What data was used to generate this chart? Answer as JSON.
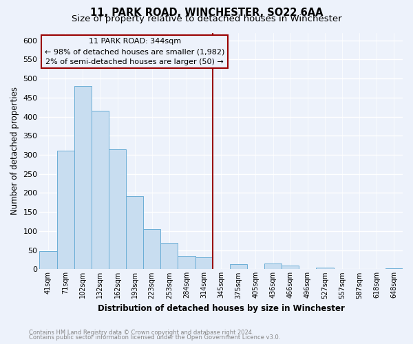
{
  "title": "11, PARK ROAD, WINCHESTER, SO22 6AA",
  "subtitle": "Size of property relative to detached houses in Winchester",
  "xlabel": "Distribution of detached houses by size in Winchester",
  "ylabel": "Number of detached properties",
  "footnote1": "Contains HM Land Registry data © Crown copyright and database right 2024.",
  "footnote2": "Contains public sector information licensed under the Open Government Licence v3.0.",
  "bar_labels": [
    "41sqm",
    "71sqm",
    "102sqm",
    "132sqm",
    "162sqm",
    "193sqm",
    "223sqm",
    "253sqm",
    "284sqm",
    "314sqm",
    "345sqm",
    "375sqm",
    "405sqm",
    "436sqm",
    "466sqm",
    "496sqm",
    "527sqm",
    "557sqm",
    "587sqm",
    "618sqm",
    "648sqm"
  ],
  "bar_values": [
    47,
    311,
    480,
    415,
    315,
    192,
    105,
    69,
    35,
    31,
    0,
    14,
    0,
    15,
    10,
    0,
    4,
    0,
    0,
    0,
    2
  ],
  "bar_color": "#c8ddf0",
  "bar_edge_color": "#6baed6",
  "ylim": [
    0,
    620
  ],
  "yticks": [
    0,
    50,
    100,
    150,
    200,
    250,
    300,
    350,
    400,
    450,
    500,
    550,
    600
  ],
  "vline_x_index": 9.5,
  "vline_color": "#990000",
  "annotation_title": "11 PARK ROAD: 344sqm",
  "annotation_line1": "← 98% of detached houses are smaller (1,982)",
  "annotation_line2": "2% of semi-detached houses are larger (50) →",
  "background_color": "#edf2fb",
  "grid_color": "#ffffff",
  "title_fontsize": 10.5,
  "subtitle_fontsize": 9.5,
  "footnote_color": "#888888"
}
